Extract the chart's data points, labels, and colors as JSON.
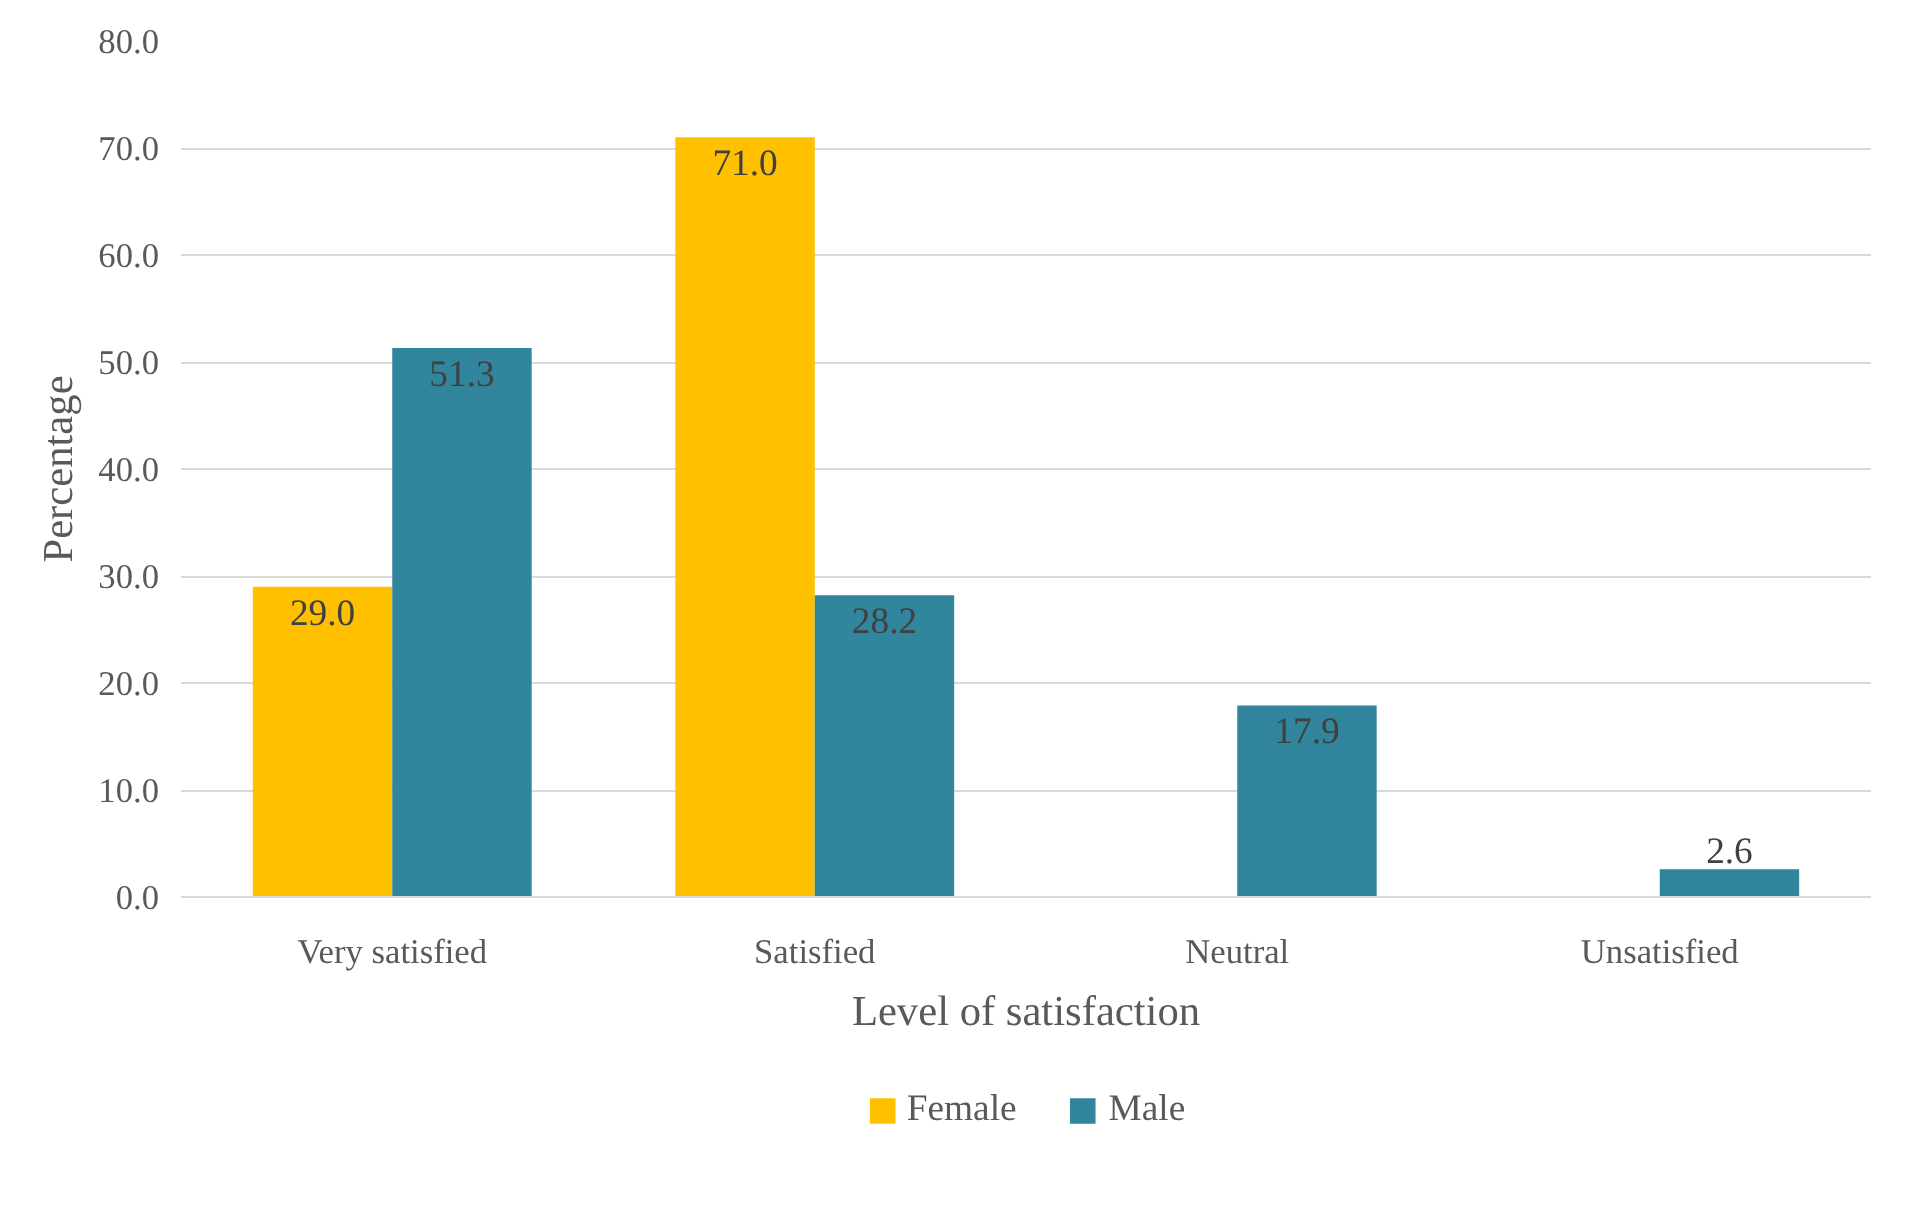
{
  "chart_data": {
    "type": "bar",
    "xlabel": "Level of satisfaction",
    "ylabel": "Percentage",
    "categories": [
      "Very satisfied",
      "Satisfied",
      "Neutral",
      "Unsatisfied"
    ],
    "series": [
      {
        "name": "Female",
        "color": "#ffc000",
        "values": [
          29.0,
          71.0,
          null,
          null
        ],
        "value_labels": [
          "29.0",
          "71.0",
          null,
          null
        ]
      },
      {
        "name": "Male",
        "color": "#31859c",
        "values": [
          51.3,
          28.2,
          17.9,
          2.6
        ],
        "value_labels": [
          "51.3",
          "28.2",
          "17.9",
          "2.6"
        ]
      }
    ],
    "ylim": [
      0,
      80
    ],
    "yticks": [
      {
        "value": 0,
        "label": "0.0"
      },
      {
        "value": 10,
        "label": "10.0"
      },
      {
        "value": 20,
        "label": "20.0"
      },
      {
        "value": 30,
        "label": "30.0"
      },
      {
        "value": 40,
        "label": "40.0"
      },
      {
        "value": 50,
        "label": "50.0"
      },
      {
        "value": 60,
        "label": "60.0"
      },
      {
        "value": 70,
        "label": "70.0"
      },
      {
        "value": 80,
        "label": "80.0"
      }
    ],
    "grid": "y",
    "legend": "bottom"
  }
}
